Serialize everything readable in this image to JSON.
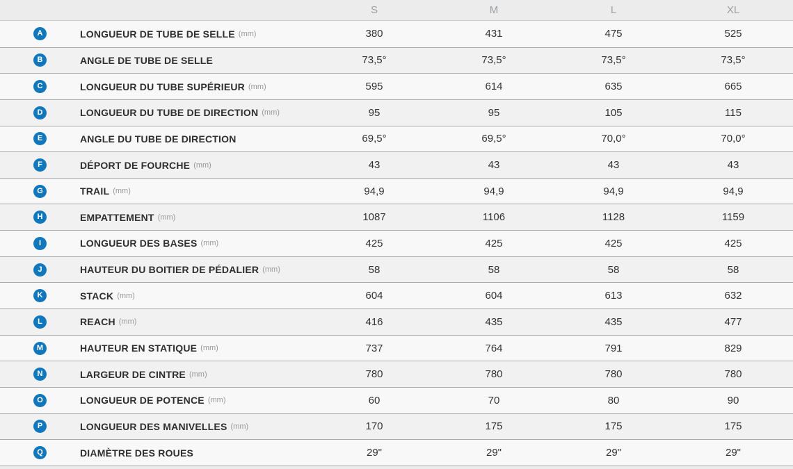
{
  "colors": {
    "badge_blue": "#1177bd",
    "header_bg": "#ececec",
    "row_odd_bg": "#f8f8f8",
    "row_even_bg": "#f1f1f1",
    "row_border": "#a9a9a9",
    "label_text": "#2e2e2e",
    "value_text": "#333333",
    "header_text": "#9aa0a6",
    "unit_text": "#999999"
  },
  "chart_data": {
    "type": "table",
    "columns": [
      "S",
      "M",
      "L",
      "XL"
    ],
    "rows": [
      {
        "badge": "A",
        "label": "LONGUEUR DE TUBE DE SELLE",
        "unit": "(mm)",
        "values": [
          "380",
          "431",
          "475",
          "525"
        ]
      },
      {
        "badge": "B",
        "label": "ANGLE DE TUBE DE SELLE",
        "unit": "",
        "values": [
          "73,5°",
          "73,5°",
          "73,5°",
          "73,5°"
        ]
      },
      {
        "badge": "C",
        "label": "LONGUEUR DU TUBE SUPÉRIEUR",
        "unit": "(mm)",
        "values": [
          "595",
          "614",
          "635",
          "665"
        ]
      },
      {
        "badge": "D",
        "label": "LONGUEUR DU TUBE DE DIRECTION",
        "unit": "(mm)",
        "values": [
          "95",
          "95",
          "105",
          "115"
        ]
      },
      {
        "badge": "E",
        "label": "ANGLE DU TUBE DE DIRECTION",
        "unit": "",
        "values": [
          "69,5°",
          "69,5°",
          "70,0°",
          "70,0°"
        ]
      },
      {
        "badge": "F",
        "label": "DÉPORT DE FOURCHE",
        "unit": "(mm)",
        "values": [
          "43",
          "43",
          "43",
          "43"
        ]
      },
      {
        "badge": "G",
        "label": "TRAIL",
        "unit": "(mm)",
        "values": [
          "94,9",
          "94,9",
          "94,9",
          "94,9"
        ]
      },
      {
        "badge": "H",
        "label": "EMPATTEMENT",
        "unit": "(mm)",
        "values": [
          "1087",
          "1106",
          "1128",
          "1159"
        ]
      },
      {
        "badge": "I",
        "label": "LONGUEUR DES BASES",
        "unit": "(mm)",
        "values": [
          "425",
          "425",
          "425",
          "425"
        ]
      },
      {
        "badge": "J",
        "label": "HAUTEUR DU BOITIER DE PÉDALIER",
        "unit": "(mm)",
        "values": [
          "58",
          "58",
          "58",
          "58"
        ]
      },
      {
        "badge": "K",
        "label": "STACK",
        "unit": "(mm)",
        "values": [
          "604",
          "604",
          "613",
          "632"
        ]
      },
      {
        "badge": "L",
        "label": "REACH",
        "unit": "(mm)",
        "values": [
          "416",
          "435",
          "435",
          "477"
        ]
      },
      {
        "badge": "M",
        "label": "HAUTEUR EN STATIQUE",
        "unit": "(mm)",
        "values": [
          "737",
          "764",
          "791",
          "829"
        ]
      },
      {
        "badge": "N",
        "label": "LARGEUR DE CINTRE",
        "unit": "(mm)",
        "values": [
          "780",
          "780",
          "780",
          "780"
        ]
      },
      {
        "badge": "O",
        "label": "LONGUEUR DE POTENCE",
        "unit": "(mm)",
        "values": [
          "60",
          "70",
          "80",
          "90"
        ]
      },
      {
        "badge": "P",
        "label": "LONGUEUR DES MANIVELLES",
        "unit": "(mm)",
        "values": [
          "170",
          "175",
          "175",
          "175"
        ]
      },
      {
        "badge": "Q",
        "label": "DIAMÈTRE DES ROUES",
        "unit": "",
        "values": [
          "29\"",
          "29\"",
          "29\"",
          "29\""
        ]
      }
    ]
  }
}
